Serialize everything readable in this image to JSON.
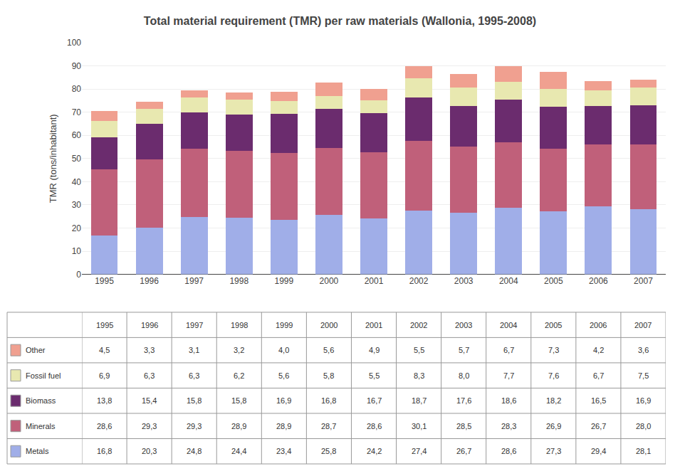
{
  "chart_data": {
    "type": "bar",
    "title": "Total material requirement (TMR) per raw materials (Wallonia, 1995-2008)",
    "categories": [
      "1995",
      "1996",
      "1997",
      "1998",
      "1999",
      "2000",
      "2001",
      "2002",
      "2003",
      "2004",
      "2005",
      "2006",
      "2007"
    ],
    "series": [
      {
        "name": "Metals",
        "color": "#a0aee8",
        "values": [
          16.8,
          20.3,
          24.8,
          24.4,
          23.4,
          25.8,
          24.2,
          27.4,
          26.7,
          28.6,
          27.3,
          29.4,
          28.1
        ],
        "value_labels": [
          "16,8",
          "20,3",
          "24,8",
          "24,4",
          "23,4",
          "25,8",
          "24,2",
          "27,4",
          "26,7",
          "28,6",
          "27,3",
          "29,4",
          "28,1"
        ]
      },
      {
        "name": "Minerals",
        "color": "#c0607a",
        "values": [
          28.6,
          29.3,
          29.3,
          28.9,
          28.9,
          28.7,
          28.6,
          30.1,
          28.5,
          28.3,
          26.9,
          26.7,
          28.0
        ],
        "value_labels": [
          "28,6",
          "29,3",
          "29,3",
          "28,9",
          "28,9",
          "28,7",
          "28,6",
          "30,1",
          "28,5",
          "28,3",
          "26,9",
          "26,7",
          "28,0"
        ]
      },
      {
        "name": "Biomass",
        "color": "#6b2c6e",
        "values": [
          13.8,
          15.4,
          15.8,
          15.8,
          16.9,
          16.8,
          16.7,
          18.7,
          17.6,
          18.6,
          18.2,
          16.5,
          16.9
        ],
        "value_labels": [
          "13,8",
          "15,4",
          "15,8",
          "15,8",
          "16,9",
          "16,8",
          "16,7",
          "18,7",
          "17,6",
          "18,6",
          "18,2",
          "16,5",
          "16,9"
        ]
      },
      {
        "name": "Fossil fuel",
        "color": "#e8e8b0",
        "values": [
          6.9,
          6.3,
          6.3,
          6.2,
          5.6,
          5.8,
          5.5,
          8.3,
          8.0,
          7.7,
          7.6,
          6.7,
          7.5
        ],
        "value_labels": [
          "6,9",
          "6,3",
          "6,3",
          "6,2",
          "5,6",
          "5,8",
          "5,5",
          "8,3",
          "8,0",
          "7,7",
          "7,6",
          "6,7",
          "7,5"
        ]
      },
      {
        "name": "Other",
        "color": "#f0a090",
        "values": [
          4.5,
          3.3,
          3.1,
          3.2,
          4.0,
          5.6,
          4.9,
          5.5,
          5.7,
          6.7,
          7.3,
          4.2,
          3.6
        ],
        "value_labels": [
          "4,5",
          "3,3",
          "3,1",
          "3,2",
          "4,0",
          "5,6",
          "4,9",
          "5,5",
          "5,7",
          "6,7",
          "7,3",
          "4,2",
          "3,6"
        ]
      }
    ],
    "ylabel": "TMR (tons/inhabitant)",
    "ylim": [
      0,
      100
    ],
    "yticks": [
      0,
      10,
      20,
      30,
      40,
      50,
      60,
      70,
      80,
      90,
      100
    ],
    "stacked": true,
    "grid": true
  }
}
